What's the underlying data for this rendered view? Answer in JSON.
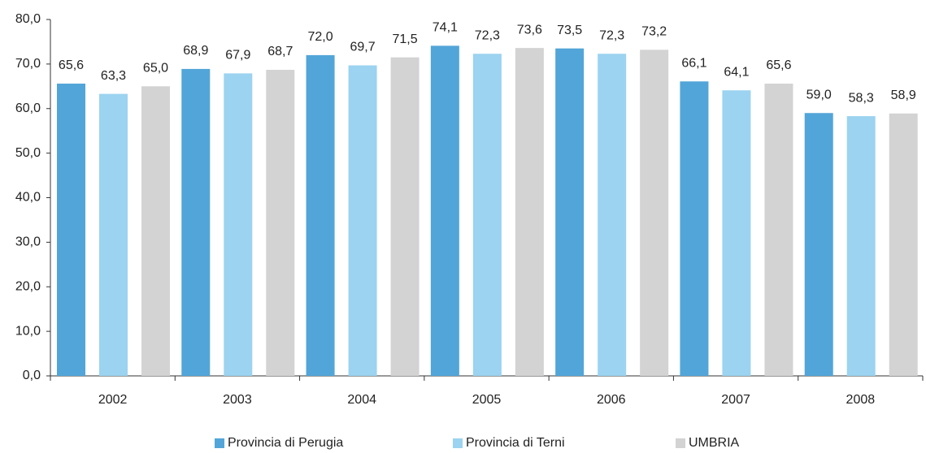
{
  "chart_data": {
    "type": "bar",
    "categories": [
      "2002",
      "2003",
      "2004",
      "2005",
      "2006",
      "2007",
      "2008"
    ],
    "series": [
      {
        "name": "Provincia di Perugia",
        "color": "#52a5d8",
        "values": [
          65.6,
          68.9,
          72.0,
          74.1,
          73.5,
          66.1,
          59.0
        ],
        "value_labels": [
          "65,6",
          "68,9",
          "72,0",
          "74,1",
          "73,5",
          "66,1",
          "59,0"
        ]
      },
      {
        "name": "Provincia di Terni",
        "color": "#9bd3f0",
        "values": [
          63.3,
          67.9,
          69.7,
          72.3,
          72.3,
          64.1,
          58.3
        ],
        "value_labels": [
          "63,3",
          "67,9",
          "69,7",
          "72,3",
          "72,3",
          "64,1",
          "58,3"
        ]
      },
      {
        "name": "UMBRIA",
        "color": "#d3d3d3",
        "values": [
          65.0,
          68.7,
          71.5,
          73.6,
          73.2,
          65.6,
          58.9
        ],
        "value_labels": [
          "65,0",
          "68,7",
          "71,5",
          "73,6",
          "73,2",
          "65,6",
          "58,9"
        ]
      }
    ],
    "ylim": [
      0,
      80
    ],
    "yticks": [
      {
        "value": 0,
        "label": "0,0"
      },
      {
        "value": 10,
        "label": "10,0"
      },
      {
        "value": 20,
        "label": "20,0"
      },
      {
        "value": 30,
        "label": "30,0"
      },
      {
        "value": 40,
        "label": "40,0"
      },
      {
        "value": 50,
        "label": "50,0"
      },
      {
        "value": 60,
        "label": "60,0"
      },
      {
        "value": 70,
        "label": "70,0"
      },
      {
        "value": 80,
        "label": "80,0"
      }
    ],
    "grid": false,
    "legend": "bottom"
  }
}
